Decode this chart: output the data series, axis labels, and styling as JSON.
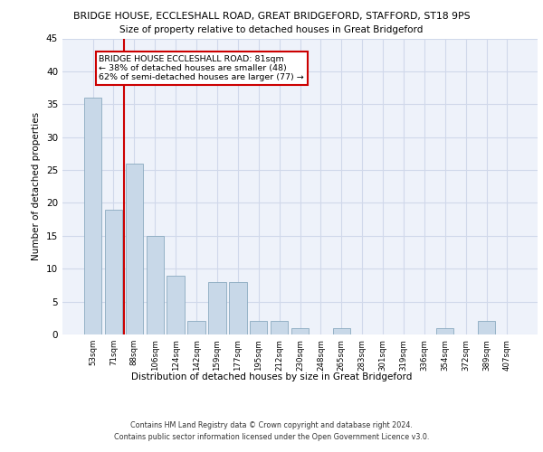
{
  "title1": "BRIDGE HOUSE, ECCLESHALL ROAD, GREAT BRIDGEFORD, STAFFORD, ST18 9PS",
  "title2": "Size of property relative to detached houses in Great Bridgeford",
  "xlabel": "Distribution of detached houses by size in Great Bridgeford",
  "ylabel": "Number of detached properties",
  "categories": [
    "53sqm",
    "71sqm",
    "88sqm",
    "106sqm",
    "124sqm",
    "142sqm",
    "159sqm",
    "177sqm",
    "195sqm",
    "212sqm",
    "230sqm",
    "248sqm",
    "265sqm",
    "283sqm",
    "301sqm",
    "319sqm",
    "336sqm",
    "354sqm",
    "372sqm",
    "389sqm",
    "407sqm"
  ],
  "values": [
    36,
    19,
    26,
    15,
    9,
    2,
    8,
    8,
    2,
    2,
    1,
    0,
    1,
    0,
    0,
    0,
    0,
    1,
    0,
    2,
    0
  ],
  "bar_color": "#c8d8e8",
  "bar_edge_color": "#8aaabf",
  "vline_color": "#cc0000",
  "annotation_text": "BRIDGE HOUSE ECCLESHALL ROAD: 81sqm\n← 38% of detached houses are smaller (48)\n62% of semi-detached houses are larger (77) →",
  "annotation_box_color": "#ffffff",
  "annotation_box_edge": "#cc0000",
  "ylim": [
    0,
    45
  ],
  "yticks": [
    0,
    5,
    10,
    15,
    20,
    25,
    30,
    35,
    40,
    45
  ],
  "footnote": "Contains HM Land Registry data © Crown copyright and database right 2024.\nContains public sector information licensed under the Open Government Licence v3.0.",
  "bg_color": "#eef2fa",
  "grid_color": "#d0d8ea"
}
